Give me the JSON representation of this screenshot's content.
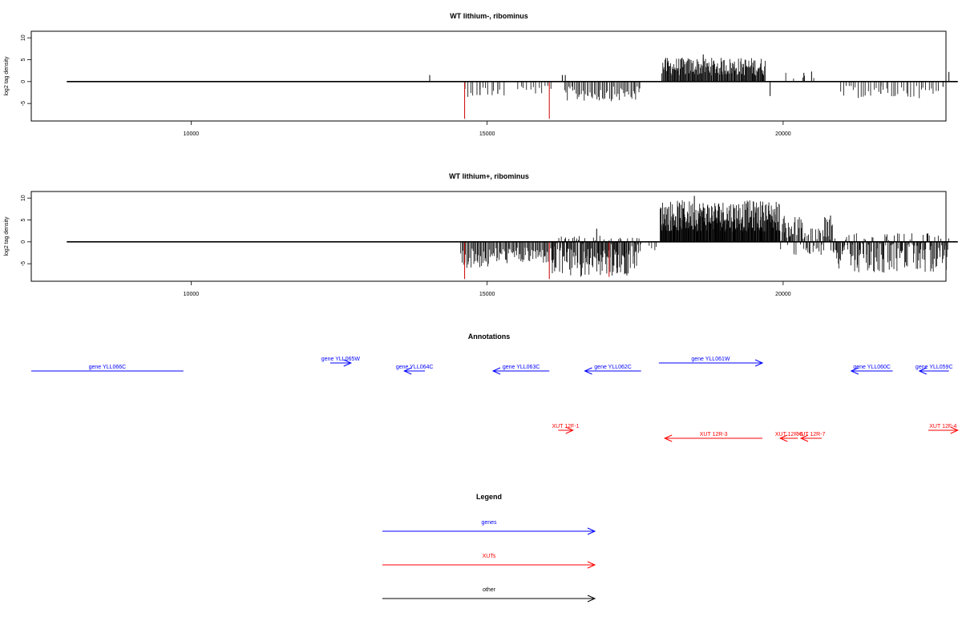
{
  "colors": {
    "gene": "#0000ff",
    "xut": "#ff0000",
    "other": "#000000",
    "red_bar": "#cc0000"
  },
  "chart_data": [
    {
      "type": "bar",
      "title": "WT lithium-, ribominus",
      "ylabel": "log2 tag density",
      "xlim": [
        7300,
        22750
      ],
      "ylim": [
        -9,
        11.5
      ],
      "xticks": [
        10000,
        15000,
        20000
      ],
      "yticks": [
        10,
        5,
        0,
        -5
      ],
      "baseline": [
        7900,
        22950
      ],
      "spikes": [
        {
          "x": 14620,
          "y": -8.5
        },
        {
          "x": 16050,
          "y": -8.5
        },
        {
          "x": 14030,
          "y": 1.5
        },
        {
          "x": 16270,
          "y": 1.5
        },
        {
          "x": 16320,
          "y": 1.5
        },
        {
          "x": 18650,
          "y": 6.2
        },
        {
          "x": 19780,
          "y": -3.3
        },
        {
          "x": 20350,
          "y": 2.0
        },
        {
          "x": 20480,
          "y": 2.3
        },
        {
          "x": 22800,
          "y": 2.2
        },
        {
          "x": 22700,
          "y": -1.2
        },
        {
          "x": 21650,
          "y": -2.8
        },
        {
          "x": 15180,
          "y": -2.8
        },
        {
          "x": 14880,
          "y": -3.1
        }
      ],
      "segments": [
        {
          "x0": 14600,
          "x1": 15300,
          "min": -3.5,
          "max": 0,
          "n": 14
        },
        {
          "x0": 15500,
          "x1": 16100,
          "min": -3.0,
          "max": 0,
          "n": 12
        },
        {
          "x0": 16300,
          "x1": 17600,
          "min": -4.5,
          "max": 0,
          "n": 55
        },
        {
          "x0": 17950,
          "x1": 19700,
          "min": 0,
          "max": 5.5,
          "n": 160
        },
        {
          "x0": 20000,
          "x1": 20600,
          "min": 0,
          "max": 2.5,
          "n": 5
        },
        {
          "x0": 20960,
          "x1": 22650,
          "min": -3.8,
          "max": 0,
          "n": 40
        }
      ]
    },
    {
      "type": "bar",
      "title": "WT lithium+, ribominus",
      "ylabel": "log2 tag density",
      "xlim": [
        7300,
        22750
      ],
      "ylim": [
        -9,
        11.5
      ],
      "xticks": [
        10000,
        15000,
        20000
      ],
      "yticks": [
        10,
        5,
        0,
        -5
      ],
      "baseline": [
        7900,
        22950
      ],
      "spikes": [
        {
          "x": 14620,
          "y": -8.5
        },
        {
          "x": 16050,
          "y": -8.5
        },
        {
          "x": 16850,
          "y": 3.0
        },
        {
          "x": 18500,
          "y": 10.5
        },
        {
          "x": 20800,
          "y": 6.0
        },
        {
          "x": 21700,
          "y": -7.0
        },
        {
          "x": 17060,
          "y": -8.0
        }
      ],
      "segments": [
        {
          "x0": 14550,
          "x1": 15050,
          "min": -6.0,
          "max": 0,
          "n": 30
        },
        {
          "x0": 15050,
          "x1": 16100,
          "min": -5.0,
          "max": 0,
          "n": 60
        },
        {
          "x0": 16100,
          "x1": 17600,
          "min": -8.0,
          "max": 1.5,
          "n": 150
        },
        {
          "x0": 17700,
          "x1": 17900,
          "min": -2.0,
          "max": 0,
          "n": 4
        },
        {
          "x0": 17920,
          "x1": 19950,
          "min": 0,
          "max": 9.5,
          "n": 260
        },
        {
          "x0": 19950,
          "x1": 20900,
          "min": -3.0,
          "max": 6.0,
          "n": 80
        },
        {
          "x0": 20900,
          "x1": 22800,
          "min": -7.0,
          "max": 2.0,
          "n": 150
        }
      ]
    }
  ],
  "annotations": {
    "title": "Annotations",
    "genes": [
      {
        "label": "gene YLL066C",
        "x0": 7300,
        "x1": 9870,
        "dir": "left",
        "row": 0,
        "arrowhead": false
      },
      {
        "label": "gene YLL065W",
        "x0": 12350,
        "x1": 12700,
        "dir": "right",
        "row": 1
      },
      {
        "label": "gene YLL064C",
        "x0": 13600,
        "x1": 13950,
        "dir": "left",
        "row": 0
      },
      {
        "label": "gene YLL063C",
        "x0": 15100,
        "x1": 16050,
        "dir": "left",
        "row": 0
      },
      {
        "label": "gene YLL062C",
        "x0": 16650,
        "x1": 17600,
        "dir": "left",
        "row": 0
      },
      {
        "label": "gene YLL061W",
        "x0": 17900,
        "x1": 19650,
        "dir": "right",
        "row": 1
      },
      {
        "label": "gene YLL060C",
        "x0": 21150,
        "x1": 21850,
        "dir": "left",
        "row": 0
      },
      {
        "label": "gene YLL059C",
        "x0": 22300,
        "x1": 22800,
        "dir": "left",
        "row": 0
      }
    ],
    "xuts": [
      {
        "label": "XUT 12F-1",
        "x0": 16200,
        "x1": 16450,
        "dir": "right",
        "row": 0
      },
      {
        "label": "XUT 12R-3",
        "x0": 18000,
        "x1": 19650,
        "dir": "left",
        "row": 1
      },
      {
        "label": "XUT 12R-6",
        "x0": 19950,
        "x1": 20250,
        "dir": "left",
        "row": 1
      },
      {
        "label": "XUT 12R-7",
        "x0": 20300,
        "x1": 20650,
        "dir": "left",
        "row": 1
      },
      {
        "label": "XUT 12F-4",
        "x0": 22450,
        "x1": 22950,
        "dir": "right",
        "row": 0
      }
    ]
  },
  "legend": {
    "title": "Legend",
    "items": [
      {
        "label": "genes",
        "color": "#0000ff"
      },
      {
        "label": "XUTs",
        "color": "#ff0000"
      },
      {
        "label": "other",
        "color": "#000000"
      }
    ]
  }
}
